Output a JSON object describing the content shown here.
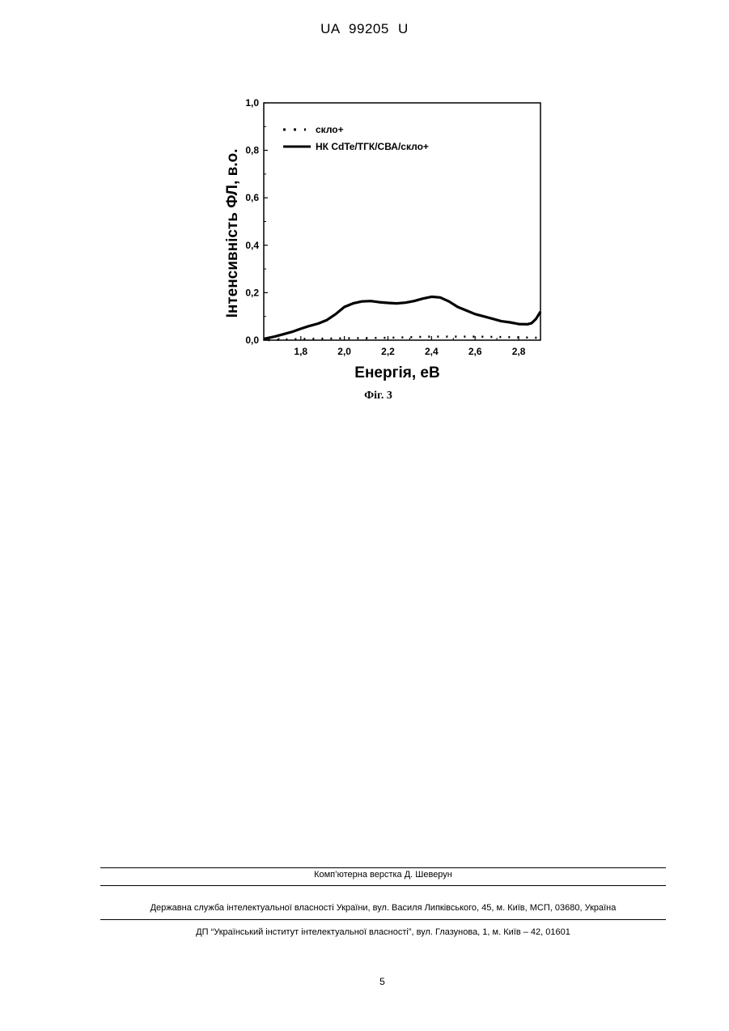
{
  "header": {
    "doc_id": "UA   99205   U"
  },
  "figure": {
    "caption": "Фіг. 3"
  },
  "chart_data": {
    "type": "line",
    "xlabel": "Енергія, еВ",
    "ylabel": "Інтенсивність ФЛ, в.о.",
    "xlim": [
      1.63,
      2.9
    ],
    "ylim": [
      0.0,
      1.0
    ],
    "x_ticks": [
      "1,8",
      "2,0",
      "2,2",
      "2,4",
      "2,6",
      "2,8"
    ],
    "x_tick_values": [
      1.8,
      2.0,
      2.2,
      2.4,
      2.6,
      2.8
    ],
    "y_ticks": [
      "0,0",
      "0,2",
      "0,4",
      "0,6",
      "0,8",
      "1,0"
    ],
    "y_tick_values": [
      0.0,
      0.2,
      0.4,
      0.6,
      0.8,
      1.0
    ],
    "grid": false,
    "legend_position": "top-left",
    "series": [
      {
        "name": "скло+",
        "style": "dotted",
        "x": [
          1.65,
          1.8,
          2.0,
          2.2,
          2.4,
          2.6,
          2.8,
          2.9
        ],
        "y": [
          0.0,
          0.005,
          0.008,
          0.01,
          0.015,
          0.015,
          0.012,
          0.01
        ]
      },
      {
        "name": "НК CdTe/ТГК/СВА/скло+",
        "style": "solid",
        "x": [
          1.63,
          1.68,
          1.72,
          1.76,
          1.8,
          1.84,
          1.88,
          1.92,
          1.96,
          2.0,
          2.04,
          2.08,
          2.12,
          2.16,
          2.2,
          2.24,
          2.28,
          2.32,
          2.36,
          2.4,
          2.44,
          2.48,
          2.52,
          2.56,
          2.6,
          2.64,
          2.68,
          2.72,
          2.76,
          2.8,
          2.84,
          2.86,
          2.88,
          2.9
        ],
        "y": [
          0.005,
          0.015,
          0.025,
          0.035,
          0.048,
          0.06,
          0.07,
          0.085,
          0.11,
          0.14,
          0.155,
          0.163,
          0.165,
          0.16,
          0.157,
          0.155,
          0.158,
          0.165,
          0.175,
          0.183,
          0.18,
          0.163,
          0.14,
          0.125,
          0.11,
          0.1,
          0.09,
          0.08,
          0.075,
          0.068,
          0.067,
          0.072,
          0.09,
          0.12
        ]
      }
    ]
  },
  "footer": {
    "layout_credit": "Комп’ютерна верстка Д. Шеверун",
    "agency": "Державна служба інтелектуальної власності України, вул. Василя Липківського, 45, м. Київ, МСП, 03680, Україна",
    "institute": "ДП “Український інститут інтелектуальної власності”, вул. Глазунова, 1, м. Київ – 42, 01601",
    "page_number": "5"
  }
}
